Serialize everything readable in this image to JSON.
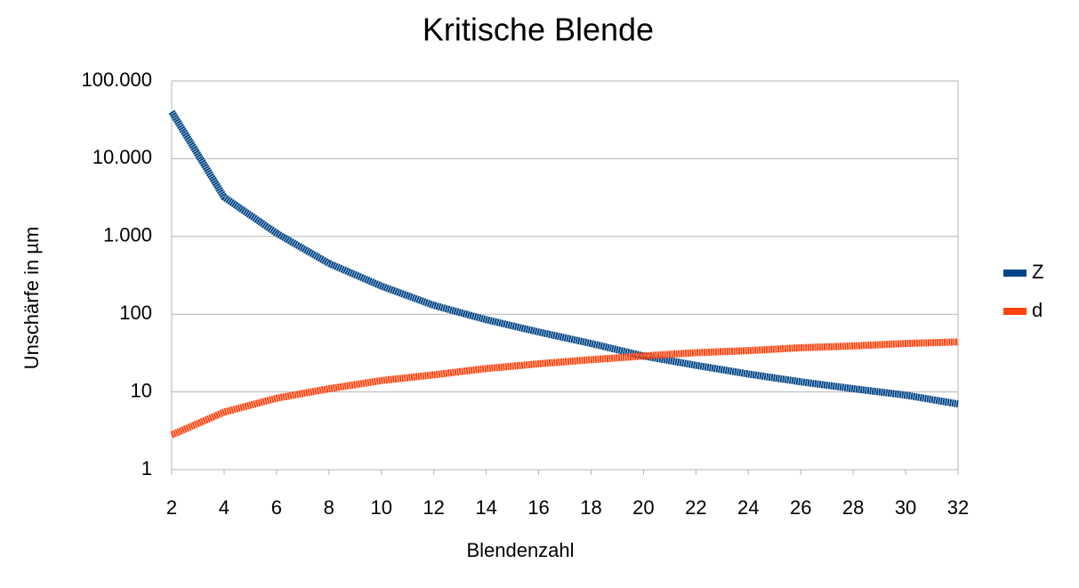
{
  "chart_data": {
    "type": "line",
    "title": "Kritische Blende",
    "x_label": "Blendenzahl",
    "y_label": "Unschärfe in µm",
    "x": [
      2,
      4,
      6,
      8,
      10,
      12,
      14,
      16,
      18,
      20,
      22,
      24,
      26,
      28,
      30,
      32
    ],
    "series": [
      {
        "name": "Z",
        "color": "#004586",
        "values": [
          40000,
          3200,
          1100,
          450,
          230,
          130,
          85,
          59,
          42,
          29,
          22,
          17,
          13.5,
          11,
          9.1,
          7
        ]
      },
      {
        "name": "d",
        "color": "#ff420e",
        "values": [
          2.8,
          5.5,
          8.3,
          11,
          14,
          16.6,
          20,
          23,
          26,
          29,
          32,
          34,
          37,
          39,
          42,
          44
        ]
      }
    ],
    "xlim": [
      2,
      32
    ],
    "xticks": [
      2,
      4,
      6,
      8,
      10,
      12,
      14,
      16,
      18,
      20,
      22,
      24,
      26,
      28,
      30,
      32
    ],
    "ylim": [
      1,
      100000
    ],
    "log_y": true,
    "yticks": [
      1,
      10,
      100,
      {
        "value": 1000,
        "label": "1.000"
      },
      {
        "value": 10000,
        "label": "10.000"
      },
      {
        "value": 100000,
        "label": "100.000"
      }
    ],
    "grid": true,
    "legend": "right"
  }
}
